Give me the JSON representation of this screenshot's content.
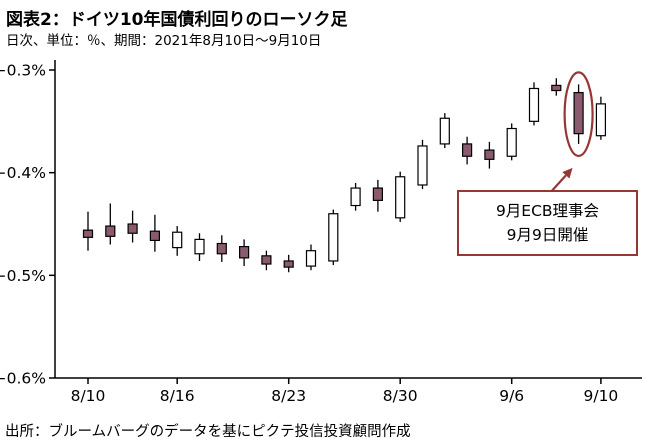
{
  "header": {
    "title": "図表2：ドイツ10年国債利回りのローソク足",
    "subtitle": "日次、単位：％、期間：2021年8月10日～9月10日"
  },
  "footer": {
    "source": "出所：ブルームバーグのデータを基にピクテ投信投資顧問作成"
  },
  "chart_data": {
    "type": "candlestick",
    "title": "図表2：ドイツ10年国債利回りのローソク足",
    "subtitle": "日次、単位：％、期間：2021年8月10日～9月10日",
    "unit": "%",
    "ylim": [
      -0.6,
      -0.3
    ],
    "y_ticks": [
      -0.3,
      -0.4,
      -0.5,
      -0.6
    ],
    "y_tick_labels": [
      "−0.3%",
      "−0.4%",
      "−0.5%",
      "−0.6%"
    ],
    "x_tick_labels": [
      "8/10",
      "8/16",
      "8/23",
      "8/30",
      "9/6",
      "9/10"
    ],
    "x_tick_indices": [
      0,
      4,
      9,
      14,
      19,
      23
    ],
    "grid": false,
    "legend": false,
    "candles": [
      {
        "date": "8/10",
        "open": -0.456,
        "high": -0.438,
        "low": -0.476,
        "close": -0.463
      },
      {
        "date": "8/11",
        "open": -0.452,
        "high": -0.43,
        "low": -0.47,
        "close": -0.462
      },
      {
        "date": "8/12",
        "open": -0.45,
        "high": -0.437,
        "low": -0.468,
        "close": -0.459
      },
      {
        "date": "8/13",
        "open": -0.457,
        "high": -0.441,
        "low": -0.477,
        "close": -0.466
      },
      {
        "date": "8/16",
        "open": -0.473,
        "high": -0.452,
        "low": -0.481,
        "close": -0.458
      },
      {
        "date": "8/17",
        "open": -0.479,
        "high": -0.459,
        "low": -0.486,
        "close": -0.465
      },
      {
        "date": "8/18",
        "open": -0.469,
        "high": -0.461,
        "low": -0.487,
        "close": -0.479
      },
      {
        "date": "8/19",
        "open": -0.472,
        "high": -0.465,
        "low": -0.491,
        "close": -0.483
      },
      {
        "date": "8/20",
        "open": -0.481,
        "high": -0.476,
        "low": -0.495,
        "close": -0.489
      },
      {
        "date": "8/23",
        "open": -0.486,
        "high": -0.48,
        "low": -0.497,
        "close": -0.492
      },
      {
        "date": "8/24",
        "open": -0.491,
        "high": -0.47,
        "low": -0.495,
        "close": -0.476
      },
      {
        "date": "8/25",
        "open": -0.486,
        "high": -0.436,
        "low": -0.49,
        "close": -0.44
      },
      {
        "date": "8/26",
        "open": -0.432,
        "high": -0.41,
        "low": -0.437,
        "close": -0.415
      },
      {
        "date": "8/27",
        "open": -0.415,
        "high": -0.407,
        "low": -0.438,
        "close": -0.427
      },
      {
        "date": "8/30",
        "open": -0.444,
        "high": -0.399,
        "low": -0.448,
        "close": -0.404
      },
      {
        "date": "8/31",
        "open": -0.412,
        "high": -0.368,
        "low": -0.416,
        "close": -0.374
      },
      {
        "date": "9/1",
        "open": -0.372,
        "high": -0.342,
        "low": -0.376,
        "close": -0.347
      },
      {
        "date": "9/2",
        "open": -0.372,
        "high": -0.365,
        "low": -0.392,
        "close": -0.384
      },
      {
        "date": "9/3",
        "open": -0.378,
        "high": -0.37,
        "low": -0.396,
        "close": -0.387
      },
      {
        "date": "9/6",
        "open": -0.384,
        "high": -0.352,
        "low": -0.388,
        "close": -0.357
      },
      {
        "date": "9/7",
        "open": -0.35,
        "high": -0.312,
        "low": -0.354,
        "close": -0.318
      },
      {
        "date": "9/8",
        "open": -0.315,
        "high": -0.308,
        "low": -0.325,
        "close": -0.32
      },
      {
        "date": "9/9",
        "open": -0.322,
        "high": -0.314,
        "low": -0.372,
        "close": -0.362
      },
      {
        "date": "9/10",
        "open": -0.364,
        "high": -0.326,
        "low": -0.368,
        "close": -0.333
      }
    ],
    "annotation": {
      "line1": "9月ECB理事会",
      "line2": "9月9日開催",
      "target_date": "9/9",
      "target_index": 22
    },
    "colors": {
      "down_fill": "#8a5a6e",
      "up_fill": "#ffffff",
      "stroke": "#000000",
      "annotation": "#953735"
    }
  }
}
